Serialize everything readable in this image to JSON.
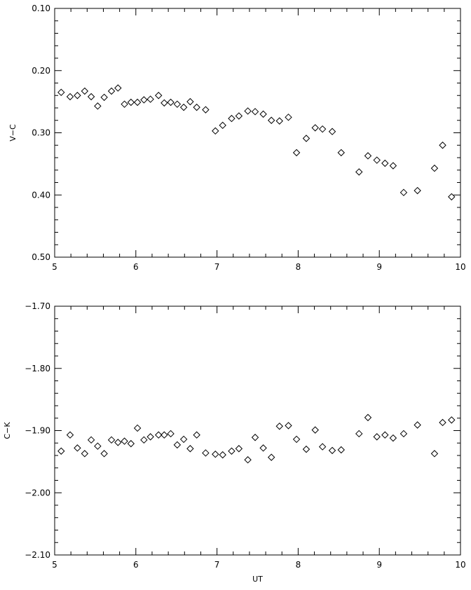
{
  "chart_data": [
    {
      "type": "scatter",
      "xlabel": "",
      "ylabel": "V−C",
      "xlim": [
        5,
        10
      ],
      "ylim": [
        0.1,
        0.5
      ],
      "y_inverted": true,
      "xticks": [
        5,
        6,
        7,
        8,
        9,
        10
      ],
      "xtick_labels": [
        "5",
        "6",
        "7",
        "8",
        "9",
        "10"
      ],
      "yticks": [
        0.1,
        0.2,
        0.3,
        0.4,
        0.5
      ],
      "ytick_labels": [
        "0.10",
        "0.20",
        "0.30",
        "0.40",
        "0.50"
      ],
      "grid": false,
      "marker": "diamond",
      "x": [
        5.08,
        5.19,
        5.28,
        5.37,
        5.45,
        5.53,
        5.61,
        5.7,
        5.78,
        5.86,
        5.94,
        6.02,
        6.1,
        6.18,
        6.28,
        6.35,
        6.43,
        6.51,
        6.59,
        6.67,
        6.75,
        6.86,
        6.98,
        7.07,
        7.18,
        7.27,
        7.38,
        7.47,
        7.57,
        7.67,
        7.77,
        7.88,
        7.98,
        8.1,
        8.21,
        8.3,
        8.42,
        8.53,
        8.75,
        8.86,
        8.97,
        9.07,
        9.17,
        9.3,
        9.47,
        9.68,
        9.78,
        9.89
      ],
      "y": [
        0.235,
        0.242,
        0.24,
        0.233,
        0.242,
        0.257,
        0.243,
        0.233,
        0.228,
        0.254,
        0.251,
        0.251,
        0.247,
        0.246,
        0.24,
        0.252,
        0.251,
        0.254,
        0.259,
        0.25,
        0.259,
        0.263,
        0.297,
        0.288,
        0.277,
        0.273,
        0.265,
        0.266,
        0.27,
        0.28,
        0.281,
        0.275,
        0.332,
        0.309,
        0.292,
        0.294,
        0.298,
        0.332,
        0.363,
        0.337,
        0.344,
        0.349,
        0.353,
        0.396,
        0.393,
        0.357,
        0.32,
        0.403
      ]
    },
    {
      "type": "scatter",
      "xlabel": "UT",
      "ylabel": "C−K",
      "xlim": [
        5,
        10
      ],
      "ylim": [
        -1.7,
        -2.1
      ],
      "y_inverted": false,
      "xticks": [
        5,
        6,
        7,
        8,
        9,
        10
      ],
      "xtick_labels": [
        "5",
        "6",
        "7",
        "8",
        "9",
        "10"
      ],
      "yticks": [
        -1.7,
        -1.8,
        -1.9,
        -2.0,
        -2.1
      ],
      "ytick_labels": [
        "−1.70",
        "−1.80",
        "−1.90",
        "−2.00",
        "−2.10"
      ],
      "grid": false,
      "marker": "diamond",
      "x": [
        5.08,
        5.19,
        5.28,
        5.37,
        5.45,
        5.53,
        5.61,
        5.7,
        5.78,
        5.86,
        5.94,
        6.02,
        6.1,
        6.18,
        6.28,
        6.35,
        6.43,
        6.51,
        6.59,
        6.67,
        6.75,
        6.86,
        6.98,
        7.07,
        7.18,
        7.27,
        7.38,
        7.47,
        7.57,
        7.67,
        7.77,
        7.88,
        7.98,
        8.1,
        8.21,
        8.3,
        8.42,
        8.53,
        8.75,
        8.86,
        8.97,
        9.07,
        9.17,
        9.3,
        9.47,
        9.68,
        9.78,
        9.89
      ],
      "y": [
        -1.933,
        -1.907,
        -1.928,
        -1.937,
        -1.915,
        -1.925,
        -1.937,
        -1.915,
        -1.919,
        -1.917,
        -1.921,
        -1.896,
        -1.915,
        -1.91,
        -1.907,
        -1.907,
        -1.905,
        -1.923,
        -1.914,
        -1.929,
        -1.907,
        -1.936,
        -1.938,
        -1.939,
        -1.933,
        -1.929,
        -1.947,
        -1.911,
        -1.928,
        -1.943,
        -1.893,
        -1.892,
        -1.914,
        -1.93,
        -1.899,
        -1.926,
        -1.932,
        -1.931,
        -1.905,
        -1.879,
        -1.91,
        -1.907,
        -1.912,
        -1.905,
        -1.891,
        -1.937,
        -1.887,
        -1.883
      ]
    }
  ]
}
